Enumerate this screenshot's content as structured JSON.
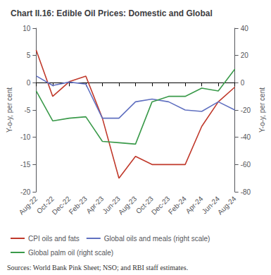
{
  "chart_data": {
    "type": "line",
    "title": "Chart II.16: Edible Oil Prices: Domestic and Global",
    "annotations": [
      "Sources: World Bank Pink Sheet; NSO; and RBI staff estimates."
    ],
    "categories": [
      "Aug-22",
      "Oct-22",
      "Dec-22",
      "Feb-23",
      "Apr-23",
      "Jun-23",
      "Aug-23",
      "Oct-23",
      "Dec-23",
      "Feb-24",
      "Apr-24",
      "Jun-24",
      "Aug-24"
    ],
    "series": [
      {
        "name": "CPI oils and fats",
        "color": "#c0392b",
        "axis": "y",
        "values": [
          6.0,
          -2.5,
          0.2,
          1.2,
          -6.5,
          -17.5,
          -13.5,
          -15.0,
          -15.0,
          -15.0,
          -8.0,
          -3.5,
          -0.8
        ]
      },
      {
        "name": "Global oils and meals (right scale)",
        "color": "#6070c0",
        "axis": "y2",
        "values": [
          5.0,
          -2.0,
          0.5,
          -1.0,
          -26.0,
          -26.0,
          -14.0,
          -12.0,
          -14.0,
          -20.0,
          -21.0,
          -14.0,
          -20.0
        ]
      },
      {
        "name": "Global palm oil (right scale)",
        "color": "#3a9a4a",
        "axis": "y2",
        "values": [
          -6.0,
          -28.0,
          -26.0,
          -25.0,
          -43.0,
          -44.0,
          -45.0,
          -14.0,
          -10.0,
          -10.0,
          -4.0,
          -6.0,
          10.0
        ]
      }
    ],
    "ylabel": "Y-o-y, per cent",
    "y2label": "Y-o-y, per cent",
    "ylim": [
      -20,
      10
    ],
    "yticks": [
      -20,
      -15,
      -10,
      -5,
      0,
      5,
      10
    ],
    "y2lim": [
      -80,
      40
    ],
    "y2ticks": [
      -80,
      -60,
      -40,
      -20,
      0,
      20,
      40
    ],
    "grid": false,
    "legend": "bottom"
  }
}
